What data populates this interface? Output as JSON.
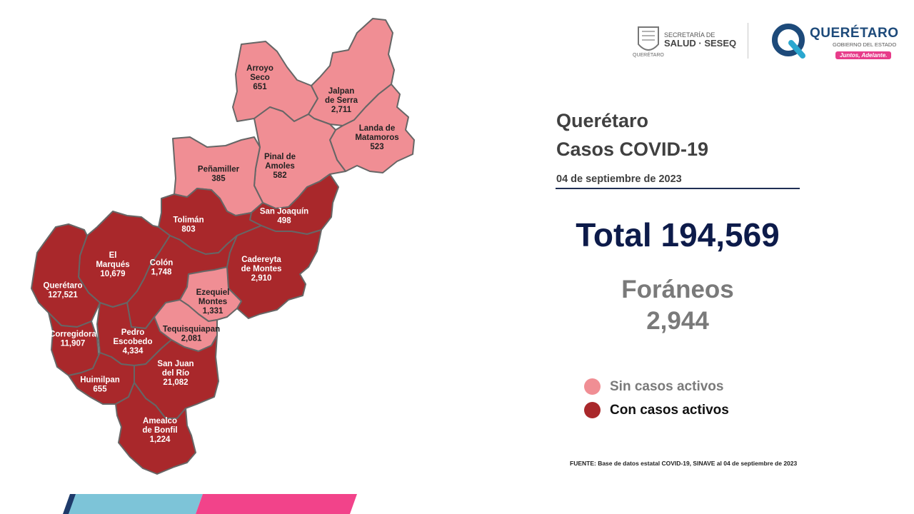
{
  "colors": {
    "sin_casos": "#f08e94",
    "con_casos": "#a9282b",
    "border": "#666666",
    "title_text": "#404040",
    "total_text": "#0d1b4a",
    "foraneos_text": "#7a7a7a",
    "footer_blue": "#7dc4d8",
    "footer_pink": "#f2438a",
    "footer_navy": "#1e3a6a"
  },
  "logos": {
    "salud": {
      "line1": "SECRETARÍA DE",
      "line2": "SALUD · SESEQ",
      "line3": "QUERÉTARO"
    },
    "qro": {
      "name": "QUERÉTARO",
      "sub": "GOBIERNO DEL ESTADO",
      "tagline": "Juntos, Adelante."
    }
  },
  "header": {
    "title_line1": "Querétaro",
    "title_line2": "Casos COVID-19",
    "date": "04 de septiembre de 2023"
  },
  "totals": {
    "total_label": "Total 194,569",
    "foraneos_label": "Foráneos",
    "foraneos_value": "2,944"
  },
  "legend": [
    {
      "label": "Sin casos activos",
      "color": "#f08e94"
    },
    {
      "label": "Con casos activos",
      "color": "#a9282b"
    }
  ],
  "source": "FUENTE: Base de datos estatal  COVID-19,  SINAVE  al 04 de septiembre de 2023",
  "municipalities": [
    {
      "id": "arroyo-seco",
      "name_lines": [
        "Arroyo",
        "Seco"
      ],
      "value": "651",
      "active": false
    },
    {
      "id": "jalpan",
      "name_lines": [
        "Jalpan",
        "de Serra"
      ],
      "value": "2,711",
      "active": false
    },
    {
      "id": "landa",
      "name_lines": [
        "Landa de",
        "Matamoros"
      ],
      "value": "523",
      "active": false
    },
    {
      "id": "pinal",
      "name_lines": [
        "Pinal de",
        "Amoles"
      ],
      "value": "582",
      "active": false
    },
    {
      "id": "penamiller",
      "name_lines": [
        "Peñamiller"
      ],
      "value": "385",
      "active": false
    },
    {
      "id": "san-joaquin",
      "name_lines": [
        "San Joaquín"
      ],
      "value": "498",
      "active": true
    },
    {
      "id": "toliman",
      "name_lines": [
        "Tolimán"
      ],
      "value": "803",
      "active": true
    },
    {
      "id": "el-marques",
      "name_lines": [
        "El",
        "Marqués"
      ],
      "value": "10,679",
      "active": true
    },
    {
      "id": "colon",
      "name_lines": [
        "Colón"
      ],
      "value": "1,748",
      "active": true
    },
    {
      "id": "cadereyta",
      "name_lines": [
        "Cadereyta",
        "de Montes"
      ],
      "value": "2,910",
      "active": true
    },
    {
      "id": "queretaro",
      "name_lines": [
        "Querétaro"
      ],
      "value": "127,521",
      "active": true
    },
    {
      "id": "ezequiel",
      "name_lines": [
        "Ezequiel",
        "Montes"
      ],
      "value": "1,331",
      "active": false
    },
    {
      "id": "tequisquiapan",
      "name_lines": [
        "Tequisquiapan"
      ],
      "value": "2,081",
      "active": false
    },
    {
      "id": "corregidora",
      "name_lines": [
        "Corregidora"
      ],
      "value": "11,907",
      "active": true
    },
    {
      "id": "pedro-escobedo",
      "name_lines": [
        "Pedro",
        "Escobedo"
      ],
      "value": "4,334",
      "active": true
    },
    {
      "id": "huimilpan",
      "name_lines": [
        "Huimilpan"
      ],
      "value": "655",
      "active": true
    },
    {
      "id": "san-juan",
      "name_lines": [
        "San Juan",
        "del Río"
      ],
      "value": "21,082",
      "active": true
    },
    {
      "id": "amealco",
      "name_lines": [
        "Amealco",
        "de Bonfil"
      ],
      "value": "1,224",
      "active": true
    }
  ]
}
